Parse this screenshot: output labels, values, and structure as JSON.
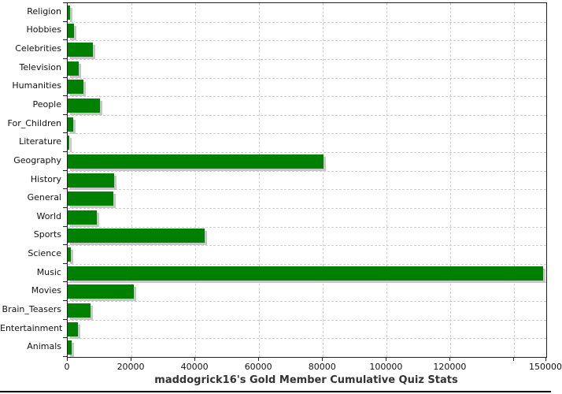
{
  "chart_data": {
    "type": "bar",
    "orientation": "horizontal",
    "title": "maddogrick16's Gold Member Cumulative Quiz Stats",
    "categories": [
      "Religion",
      "Hobbies",
      "Celebrities",
      "Television",
      "Humanities",
      "People",
      "For_Children",
      "Literature",
      "Geography",
      "History",
      "General",
      "World",
      "Sports",
      "Science",
      "Music",
      "Movies",
      "Brain_Teasers",
      "Entertainment",
      "Animals"
    ],
    "values": [
      750,
      2000,
      8000,
      3400,
      5000,
      10200,
      1750,
      450,
      80300,
      14500,
      14300,
      9100,
      43000,
      1100,
      149000,
      20700,
      7200,
      3300,
      1200
    ],
    "xlim": [
      0,
      150000
    ],
    "x_ticks": [
      {
        "value": 0,
        "label": "0"
      },
      {
        "value": 20000,
        "label": "20000"
      },
      {
        "value": 40000,
        "label": "40000"
      },
      {
        "value": 60000,
        "label": "60000"
      },
      {
        "value": 80000,
        "label": "80000"
      },
      {
        "value": 100000,
        "label": "100000"
      },
      {
        "value": 120000,
        "label": "120000"
      },
      {
        "value": 140000,
        "label": ""
      },
      {
        "value": 150000,
        "label": "150000"
      }
    ],
    "grid": true,
    "legend": "none",
    "bar_color": "#008000",
    "shadow_color": "#c6c6c6",
    "grid_color": "#ccd0d6",
    "axis_color": "#222222"
  }
}
